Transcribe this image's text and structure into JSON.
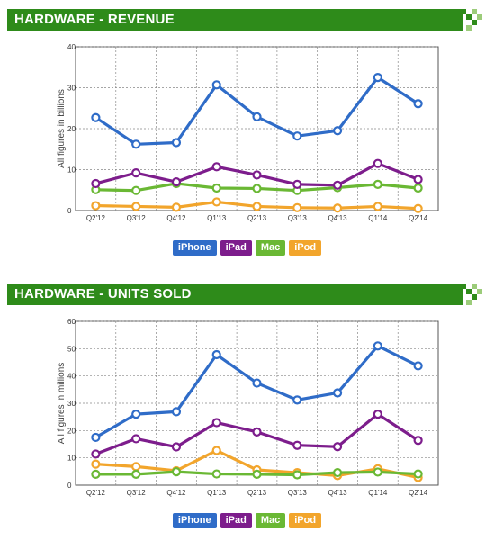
{
  "colors": {
    "header_bg": "#2e8b1a",
    "iPhone": "#2f6cc8",
    "iPad": "#7d1d8c",
    "Mac": "#6ab834",
    "iPod": "#f2a52c"
  },
  "panels": [
    {
      "title": "HARDWARE - REVENUE",
      "legend": [
        "iPhone",
        "iPad",
        "Mac",
        "iPod"
      ]
    },
    {
      "title": "HARDWARE - UNITS SOLD",
      "legend": [
        "iPhone",
        "iPad",
        "Mac",
        "iPod"
      ]
    }
  ],
  "chart_data": [
    {
      "type": "line",
      "title": "HARDWARE - REVENUE",
      "xlabel": "",
      "ylabel": "All figures in billions",
      "ylim": [
        0,
        40
      ],
      "yticks": [
        0,
        10,
        20,
        30,
        40
      ],
      "grid": true,
      "legend_position": "bottom",
      "categories": [
        "Q2'12",
        "Q3'12",
        "Q4'12",
        "Q1'13",
        "Q2'13",
        "Q3'13",
        "Q4'13",
        "Q1'14",
        "Q2'14"
      ],
      "series": [
        {
          "name": "iPhone",
          "color": "#2f6cc8",
          "values": [
            22.7,
            16.2,
            16.6,
            30.7,
            22.9,
            18.2,
            19.5,
            32.5,
            26.1
          ]
        },
        {
          "name": "iPad",
          "color": "#7d1d8c",
          "values": [
            6.6,
            9.2,
            7.0,
            10.7,
            8.7,
            6.4,
            6.2,
            11.5,
            7.6
          ]
        },
        {
          "name": "Mac",
          "color": "#6ab834",
          "values": [
            5.1,
            4.9,
            6.6,
            5.5,
            5.4,
            4.9,
            5.6,
            6.4,
            5.5
          ]
        },
        {
          "name": "iPod",
          "color": "#f2a52c",
          "values": [
            1.2,
            1.0,
            0.8,
            2.1,
            1.0,
            0.7,
            0.6,
            1.0,
            0.5
          ]
        }
      ]
    },
    {
      "type": "line",
      "title": "HARDWARE - UNITS SOLD",
      "xlabel": "",
      "ylabel": "All figures in millions",
      "ylim": [
        0,
        60
      ],
      "yticks": [
        0,
        10,
        20,
        30,
        40,
        50,
        60
      ],
      "grid": true,
      "legend_position": "bottom",
      "categories": [
        "Q2'12",
        "Q3'12",
        "Q4'12",
        "Q1'13",
        "Q2'13",
        "Q3'13",
        "Q4'13",
        "Q1'14",
        "Q2'14"
      ],
      "series": [
        {
          "name": "iPhone",
          "color": "#2f6cc8",
          "values": [
            17.5,
            26.0,
            26.9,
            47.8,
            37.4,
            31.2,
            33.8,
            51.0,
            43.7
          ]
        },
        {
          "name": "iPad",
          "color": "#7d1d8c",
          "values": [
            11.4,
            17.0,
            14.0,
            22.9,
            19.5,
            14.6,
            14.1,
            26.0,
            16.4
          ]
        },
        {
          "name": "Mac",
          "color": "#6ab834",
          "values": [
            4.0,
            4.0,
            4.9,
            4.1,
            4.0,
            3.8,
            4.6,
            4.8,
            4.1
          ]
        },
        {
          "name": "iPod",
          "color": "#f2a52c",
          "values": [
            7.7,
            6.8,
            5.3,
            12.7,
            5.6,
            4.6,
            3.5,
            6.0,
            2.8
          ]
        }
      ]
    }
  ]
}
